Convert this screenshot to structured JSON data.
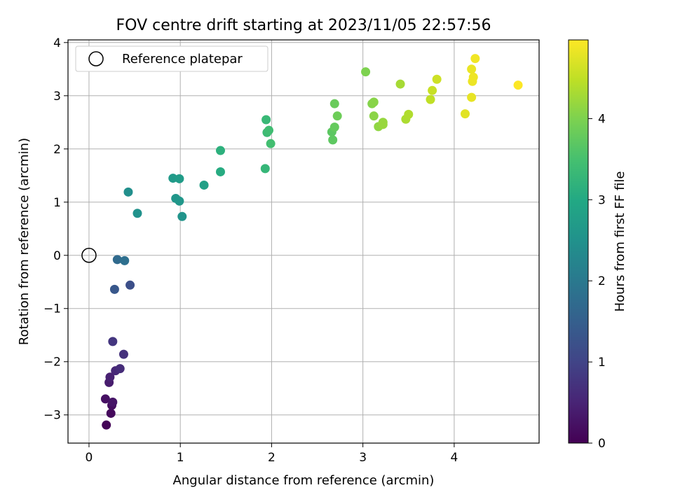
{
  "chart_data": {
    "type": "scatter",
    "title": "FOV centre drift starting at 2023/11/05 22:57:56",
    "xlabel": "Angular distance from reference (arcmin)",
    "ylabel": "Rotation from reference (arcmin)",
    "colorbar_label": "Hours from first FF file",
    "colormap": "viridis",
    "xlim": [
      -0.23,
      4.93
    ],
    "ylim": [
      -3.53,
      4.05
    ],
    "clim": [
      0,
      4.97
    ],
    "xticks": [
      0,
      1,
      2,
      3,
      4
    ],
    "yticks": [
      -3,
      -2,
      -1,
      0,
      1,
      2,
      3,
      4
    ],
    "cticks": [
      0,
      1,
      2,
      3,
      4
    ],
    "xtick_labels": [
      "0",
      "1",
      "2",
      "3",
      "4"
    ],
    "ytick_labels": [
      "−3",
      "−2",
      "−1",
      "0",
      "1",
      "2",
      "3",
      "4"
    ],
    "ctick_labels": [
      "0",
      "1",
      "2",
      "3",
      "4"
    ],
    "grid": true,
    "legend": {
      "position": "top-left",
      "label": "Reference platepar"
    },
    "reference_point": {
      "x": 0,
      "y": 0
    },
    "points": [
      {
        "x": 0.19,
        "y": -3.19,
        "c": 0.05
      },
      {
        "x": 0.24,
        "y": -2.97,
        "c": 0.12
      },
      {
        "x": 0.25,
        "y": -2.82,
        "c": 0.18
      },
      {
        "x": 0.18,
        "y": -2.7,
        "c": 0.22
      },
      {
        "x": 0.26,
        "y": -2.76,
        "c": 0.28
      },
      {
        "x": 0.22,
        "y": -2.39,
        "c": 0.38
      },
      {
        "x": 0.23,
        "y": -2.29,
        "c": 0.45
      },
      {
        "x": 0.29,
        "y": -2.17,
        "c": 0.55
      },
      {
        "x": 0.34,
        "y": -2.13,
        "c": 0.62
      },
      {
        "x": 0.38,
        "y": -1.86,
        "c": 0.7
      },
      {
        "x": 0.26,
        "y": -1.62,
        "c": 0.78
      },
      {
        "x": 0.45,
        "y": -0.56,
        "c": 1.2
      },
      {
        "x": 0.28,
        "y": -0.64,
        "c": 1.35
      },
      {
        "x": 0.31,
        "y": -0.08,
        "c": 1.7
      },
      {
        "x": 0.39,
        "y": -0.1,
        "c": 1.8
      },
      {
        "x": 0.43,
        "y": 1.19,
        "c": 2.45
      },
      {
        "x": 0.53,
        "y": 0.79,
        "c": 2.5
      },
      {
        "x": 1.02,
        "y": 0.73,
        "c": 2.55
      },
      {
        "x": 0.95,
        "y": 1.07,
        "c": 2.6
      },
      {
        "x": 0.99,
        "y": 1.02,
        "c": 2.62
      },
      {
        "x": 0.92,
        "y": 1.45,
        "c": 2.68
      },
      {
        "x": 0.99,
        "y": 1.44,
        "c": 2.72
      },
      {
        "x": 1.26,
        "y": 1.32,
        "c": 2.8
      },
      {
        "x": 1.44,
        "y": 1.57,
        "c": 3.05
      },
      {
        "x": 1.44,
        "y": 1.97,
        "c": 3.15
      },
      {
        "x": 1.93,
        "y": 1.63,
        "c": 3.28
      },
      {
        "x": 1.94,
        "y": 2.55,
        "c": 3.32
      },
      {
        "x": 1.95,
        "y": 2.31,
        "c": 3.38
      },
      {
        "x": 1.97,
        "y": 2.35,
        "c": 3.42
      },
      {
        "x": 1.99,
        "y": 2.1,
        "c": 3.46
      },
      {
        "x": 2.66,
        "y": 2.32,
        "c": 3.7
      },
      {
        "x": 2.67,
        "y": 2.17,
        "c": 3.72
      },
      {
        "x": 2.69,
        "y": 2.41,
        "c": 3.78
      },
      {
        "x": 2.69,
        "y": 2.85,
        "c": 3.82
      },
      {
        "x": 2.72,
        "y": 2.62,
        "c": 3.86
      },
      {
        "x": 3.03,
        "y": 3.45,
        "c": 4.0
      },
      {
        "x": 3.1,
        "y": 2.85,
        "c": 4.05
      },
      {
        "x": 3.12,
        "y": 2.88,
        "c": 4.08
      },
      {
        "x": 3.12,
        "y": 2.62,
        "c": 4.1
      },
      {
        "x": 3.17,
        "y": 2.42,
        "c": 4.14
      },
      {
        "x": 3.22,
        "y": 2.5,
        "c": 4.18
      },
      {
        "x": 3.22,
        "y": 2.46,
        "c": 4.2
      },
      {
        "x": 3.41,
        "y": 3.22,
        "c": 4.3
      },
      {
        "x": 3.47,
        "y": 2.56,
        "c": 4.35
      },
      {
        "x": 3.5,
        "y": 2.65,
        "c": 4.38
      },
      {
        "x": 3.74,
        "y": 2.93,
        "c": 4.5
      },
      {
        "x": 3.76,
        "y": 3.1,
        "c": 4.55
      },
      {
        "x": 3.81,
        "y": 3.31,
        "c": 4.6
      },
      {
        "x": 4.12,
        "y": 2.66,
        "c": 4.75
      },
      {
        "x": 4.19,
        "y": 2.97,
        "c": 4.8
      },
      {
        "x": 4.19,
        "y": 3.5,
        "c": 4.82
      },
      {
        "x": 4.2,
        "y": 3.27,
        "c": 4.84
      },
      {
        "x": 4.21,
        "y": 3.35,
        "c": 4.85
      },
      {
        "x": 4.23,
        "y": 3.7,
        "c": 4.88
      },
      {
        "x": 4.7,
        "y": 3.2,
        "c": 4.96
      }
    ]
  }
}
